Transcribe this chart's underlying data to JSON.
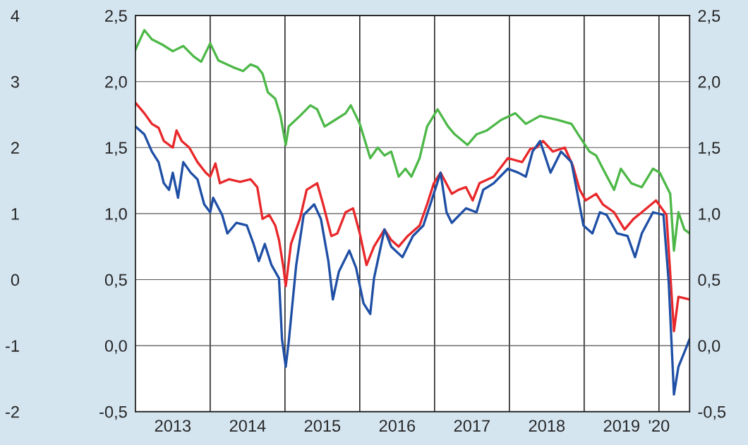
{
  "chart_data": {
    "type": "line",
    "series": [
      {
        "color": "#4db848",
        "x": [
          2013.0,
          2013.12,
          2013.22,
          2013.36,
          2013.5,
          2013.64,
          2013.78,
          2013.88,
          2014.0,
          2014.11,
          2014.3,
          2014.44,
          2014.54,
          2014.63,
          2014.7,
          2014.77,
          2014.87,
          2014.94,
          2015.01,
          2015.05,
          2015.2,
          2015.34,
          2015.43,
          2015.53,
          2015.67,
          2015.81,
          2015.88,
          2016.0,
          2016.14,
          2016.24,
          2016.33,
          2016.42,
          2016.52,
          2016.61,
          2016.69,
          2016.8,
          2016.9,
          2017.04,
          2017.18,
          2017.27,
          2017.44,
          2017.56,
          2017.7,
          2017.89,
          2018.08,
          2018.22,
          2018.41,
          2018.64,
          2018.83,
          2018.92,
          2019.07,
          2019.16,
          2019.25,
          2019.4,
          2019.49,
          2019.63,
          2019.77,
          2019.92,
          2020.01,
          2020.15,
          2020.2,
          2020.26,
          2020.34,
          2020.41
        ],
        "values": [
          2.24,
          2.39,
          2.32,
          2.28,
          2.23,
          2.27,
          2.19,
          2.15,
          2.29,
          2.16,
          2.11,
          2.08,
          2.13,
          2.11,
          2.06,
          1.92,
          1.87,
          1.74,
          1.52,
          1.66,
          1.74,
          1.82,
          1.79,
          1.66,
          1.71,
          1.76,
          1.82,
          1.68,
          1.42,
          1.5,
          1.44,
          1.47,
          1.28,
          1.34,
          1.28,
          1.42,
          1.66,
          1.79,
          1.66,
          1.6,
          1.52,
          1.6,
          1.63,
          1.71,
          1.76,
          1.68,
          1.74,
          1.71,
          1.68,
          1.6,
          1.47,
          1.44,
          1.34,
          1.18,
          1.34,
          1.23,
          1.2,
          1.34,
          1.31,
          1.15,
          0.72,
          1.01,
          0.88,
          0.85
        ]
      },
      {
        "color": "#e8282b",
        "x": [
          2013.0,
          2013.12,
          2013.22,
          2013.31,
          2013.38,
          2013.5,
          2013.55,
          2013.62,
          2013.72,
          2013.83,
          2013.94,
          2014.0,
          2014.07,
          2014.13,
          2014.25,
          2014.4,
          2014.54,
          2014.63,
          2014.7,
          2014.79,
          2014.87,
          2014.92,
          2014.98,
          2015.01,
          2015.08,
          2015.2,
          2015.29,
          2015.43,
          2015.51,
          2015.62,
          2015.7,
          2015.81,
          2015.91,
          2016.0,
          2016.09,
          2016.19,
          2016.33,
          2016.42,
          2016.52,
          2016.64,
          2016.8,
          2016.9,
          2016.99,
          2017.08,
          2017.23,
          2017.32,
          2017.42,
          2017.51,
          2017.6,
          2017.79,
          2017.98,
          2018.17,
          2018.28,
          2018.36,
          2018.45,
          2018.58,
          2018.74,
          2018.85,
          2018.94,
          2019.02,
          2019.16,
          2019.25,
          2019.4,
          2019.54,
          2019.66,
          2019.77,
          2019.96,
          2020.1,
          2020.2,
          2020.26,
          2020.41
        ],
        "values": [
          1.84,
          1.76,
          1.68,
          1.65,
          1.55,
          1.5,
          1.63,
          1.55,
          1.5,
          1.39,
          1.31,
          1.28,
          1.38,
          1.23,
          1.26,
          1.24,
          1.26,
          1.2,
          0.96,
          0.99,
          0.91,
          0.8,
          0.59,
          0.45,
          0.77,
          0.96,
          1.18,
          1.23,
          1.07,
          0.83,
          0.85,
          1.01,
          1.04,
          0.85,
          0.61,
          0.75,
          0.88,
          0.8,
          0.75,
          0.83,
          0.91,
          1.07,
          1.23,
          1.31,
          1.15,
          1.18,
          1.2,
          1.1,
          1.23,
          1.28,
          1.42,
          1.39,
          1.49,
          1.5,
          1.55,
          1.47,
          1.5,
          1.36,
          1.18,
          1.1,
          1.15,
          1.07,
          1.01,
          0.88,
          0.96,
          1.01,
          1.1,
          0.99,
          0.11,
          0.37,
          0.35
        ]
      },
      {
        "color": "#1f4fa5",
        "x": [
          2013.0,
          2013.12,
          2013.22,
          2013.31,
          2013.38,
          2013.45,
          2013.5,
          2013.57,
          2013.64,
          2013.74,
          2013.83,
          2013.92,
          2014.0,
          2014.04,
          2014.16,
          2014.23,
          2014.35,
          2014.49,
          2014.58,
          2014.65,
          2014.73,
          2014.82,
          2014.92,
          2014.96,
          2015.01,
          2015.05,
          2015.15,
          2015.25,
          2015.39,
          2015.48,
          2015.58,
          2015.64,
          2015.72,
          2015.86,
          2015.95,
          2016.05,
          2016.14,
          2016.19,
          2016.33,
          2016.42,
          2016.57,
          2016.71,
          2016.85,
          2016.96,
          2017.08,
          2017.16,
          2017.23,
          2017.42,
          2017.56,
          2017.65,
          2017.79,
          2017.98,
          2018.12,
          2018.22,
          2018.31,
          2018.41,
          2018.55,
          2018.69,
          2018.83,
          2018.91,
          2018.99,
          2019.11,
          2019.21,
          2019.3,
          2019.44,
          2019.58,
          2019.68,
          2019.77,
          2019.92,
          2020.06,
          2020.13,
          2020.2,
          2020.26,
          2020.34,
          2020.41
        ],
        "values": [
          1.66,
          1.6,
          1.47,
          1.39,
          1.23,
          1.18,
          1.31,
          1.12,
          1.39,
          1.31,
          1.26,
          1.07,
          1.01,
          1.12,
          0.99,
          0.85,
          0.93,
          0.91,
          0.77,
          0.64,
          0.77,
          0.61,
          0.51,
          0.05,
          -0.16,
          0.03,
          0.61,
          0.99,
          1.07,
          0.96,
          0.64,
          0.35,
          0.56,
          0.72,
          0.59,
          0.32,
          0.24,
          0.51,
          0.88,
          0.75,
          0.67,
          0.83,
          0.91,
          1.1,
          1.31,
          1.01,
          0.93,
          1.04,
          1.01,
          1.18,
          1.23,
          1.34,
          1.31,
          1.28,
          1.47,
          1.55,
          1.31,
          1.47,
          1.39,
          1.15,
          0.91,
          0.85,
          1.01,
          0.99,
          0.85,
          0.83,
          0.67,
          0.85,
          1.01,
          0.99,
          0.48,
          -0.37,
          -0.16,
          -0.05,
          0.05
        ]
      }
    ],
    "xlim": [
      2013.0,
      2020.41
    ],
    "xticks": [
      {
        "value": 2013.5,
        "label": "2013"
      },
      {
        "value": 2014.5,
        "label": "2014"
      },
      {
        "value": 2015.5,
        "label": "2015"
      },
      {
        "value": 2016.5,
        "label": "2016"
      },
      {
        "value": 2017.5,
        "label": "2017"
      },
      {
        "value": 2018.5,
        "label": "2018"
      },
      {
        "value": 2019.5,
        "label": "2019"
      },
      {
        "value": 2020.0,
        "label": "'20"
      }
    ],
    "ylim": [
      -0.5,
      2.5
    ],
    "yticks": [
      {
        "value": -0.5,
        "label": "-0,5"
      },
      {
        "value": 0.0,
        "label": "0,0"
      },
      {
        "value": 0.5,
        "label": "0,5"
      },
      {
        "value": 1.0,
        "label": "1,0"
      },
      {
        "value": 1.5,
        "label": "1,5"
      },
      {
        "value": 2.0,
        "label": "2,0"
      },
      {
        "value": 2.5,
        "label": "2,5"
      }
    ],
    "y2lim": [
      -0.5,
      2.5
    ],
    "y2ticks": [
      {
        "value": -0.5,
        "label": "-0,5"
      },
      {
        "value": 0.0,
        "label": "0,0"
      },
      {
        "value": 0.5,
        "label": "0,5"
      },
      {
        "value": 1.0,
        "label": "1,0"
      },
      {
        "value": 1.5,
        "label": "1,5"
      },
      {
        "value": 2.0,
        "label": "2,0"
      },
      {
        "value": 2.5,
        "label": "2,5"
      }
    ],
    "y3lim": [
      -2,
      4
    ],
    "y3ticks": [
      -2,
      -1,
      0,
      1,
      2,
      3,
      4
    ],
    "ref_lines": [
      {
        "axis": "x",
        "value": 2014.0,
        "color": "#000000"
      },
      {
        "axis": "x",
        "value": 2015.0,
        "color": "#000000"
      },
      {
        "axis": "x",
        "value": 2016.0,
        "color": "#000000"
      },
      {
        "axis": "x",
        "value": 2017.0,
        "color": "#000000"
      },
      {
        "axis": "x",
        "value": 2018.0,
        "color": "#000000"
      },
      {
        "axis": "x",
        "value": 2019.0,
        "color": "#000000"
      },
      {
        "axis": "x",
        "value": 2020.0,
        "color": "#000000"
      }
    ],
    "grid": "y",
    "legend": false
  }
}
